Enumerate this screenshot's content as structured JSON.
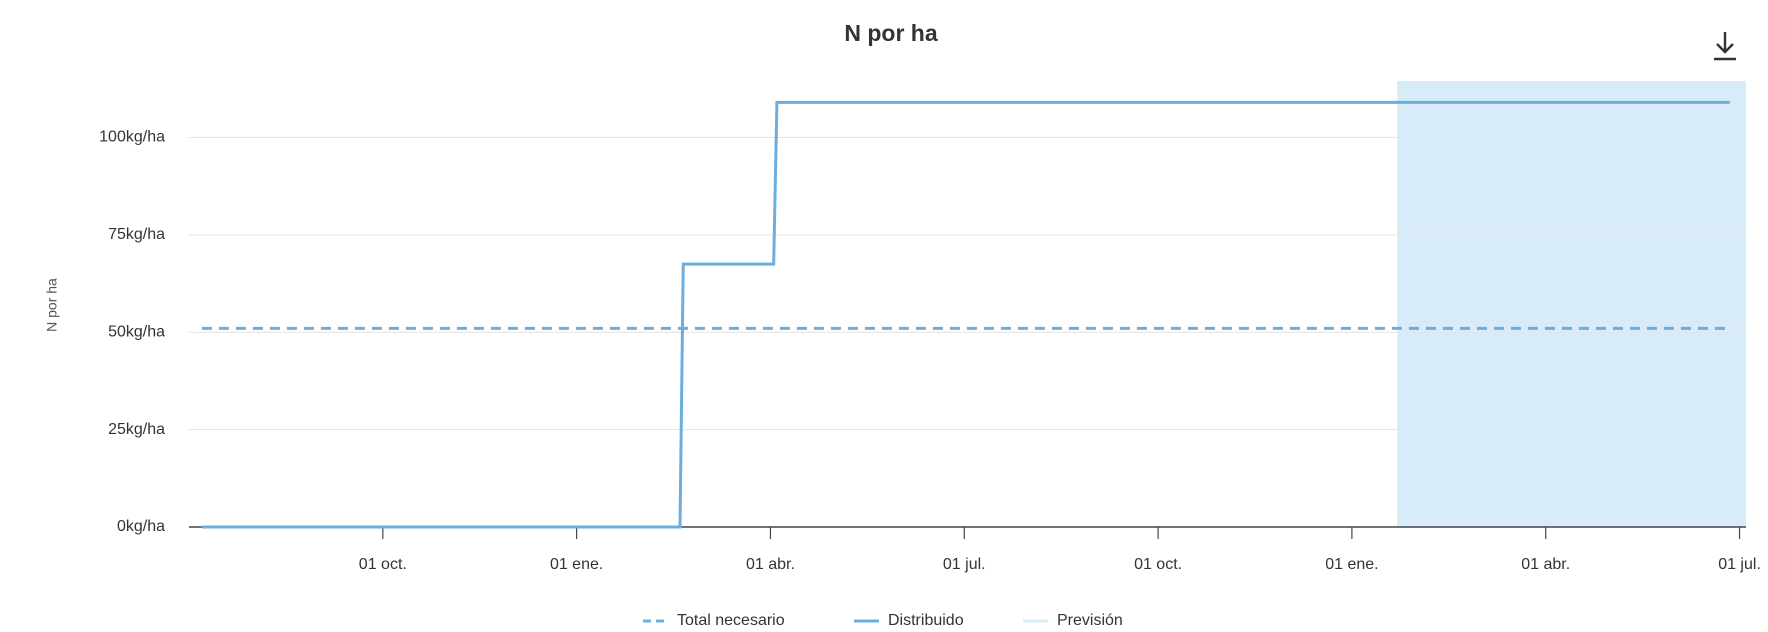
{
  "chart_data": {
    "type": "line",
    "title": "N por ha",
    "y_label": "N por ha",
    "xlim": [
      0,
      24.1
    ],
    "ylim": [
      0,
      114.5
    ],
    "xticks": [
      {
        "value": 3,
        "label": "01 oct."
      },
      {
        "value": 6,
        "label": "01 ene."
      },
      {
        "value": 9,
        "label": "01 abr."
      },
      {
        "value": 12,
        "label": "01 jul."
      },
      {
        "value": 15,
        "label": "01 oct."
      },
      {
        "value": 18,
        "label": "01 ene."
      },
      {
        "value": 21,
        "label": "01 abr."
      },
      {
        "value": 24,
        "label": "01 jul."
      }
    ],
    "yticks": [
      {
        "value": 0,
        "label": "0kg/ha"
      },
      {
        "value": 25,
        "label": "25kg/ha"
      },
      {
        "value": 50,
        "label": "50kg/ha"
      },
      {
        "value": 75,
        "label": "75kg/ha"
      },
      {
        "value": 100,
        "label": "100kg/ha"
      }
    ],
    "grid": true,
    "forecast": {
      "name": "Previsión",
      "start": 18.7,
      "color": "#d7ebf8"
    },
    "series": [
      {
        "name": "Total necesario",
        "color": "#6aaee0",
        "dashed": true,
        "x": [
          0.2,
          23.8
        ],
        "values": [
          51,
          51
        ]
      },
      {
        "name": "Distribuido",
        "color": "#6aaee0",
        "dashed": false,
        "x": [
          0.2,
          7.6,
          7.65,
          9.05,
          9.1,
          23.85
        ],
        "values": [
          0,
          0,
          67.5,
          67.5,
          109,
          109
        ]
      }
    ]
  }
}
